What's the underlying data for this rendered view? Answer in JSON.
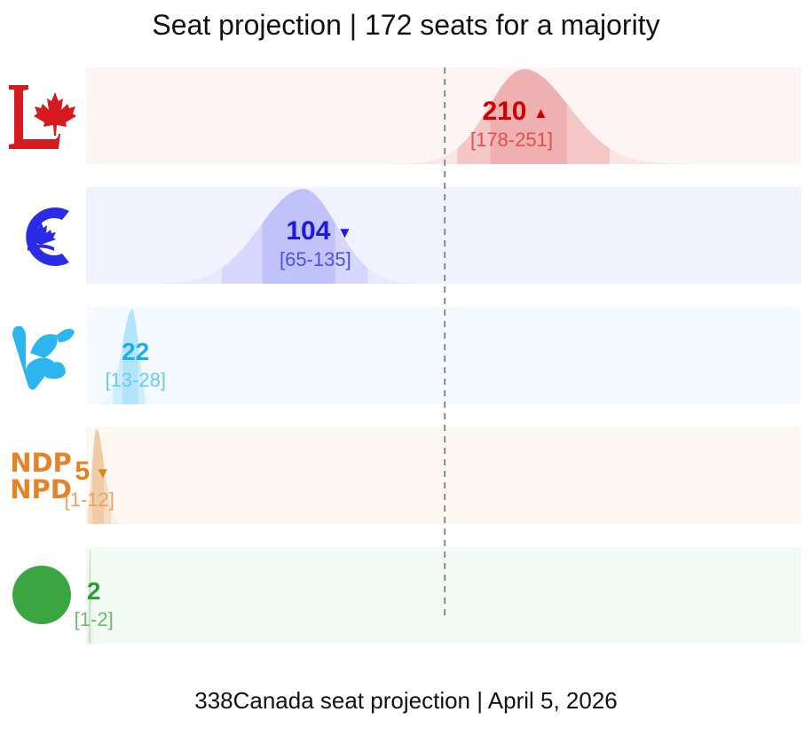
{
  "title": "Seat projection | 172 seats for a majority",
  "footer": "338Canada seat projection | April 5, 2026",
  "chart_data": {
    "type": "area",
    "x_range": [
      0,
      343
    ],
    "majority_line": 172,
    "parties": [
      {
        "id": "liberal",
        "logo": "liberal-logo",
        "value": 210,
        "trend": "▲",
        "range": "[178-251]",
        "low": 178,
        "high": 251,
        "color": "#d71920",
        "label_color": "#d00000",
        "range_color": "#e05050",
        "band_color": "#fdf4f4",
        "fill_color": "#f4c6c6",
        "fill_dark": "#eeb0b0"
      },
      {
        "id": "conservative",
        "logo": "conservative-logo",
        "value": 104,
        "trend": "▼",
        "range": "[65-135]",
        "low": 65,
        "high": 135,
        "color": "#2a2ae8",
        "label_color": "#1a1ae0",
        "range_color": "#5050e0",
        "band_color": "#f2f2ff",
        "fill_color": "#d6d6ff",
        "fill_dark": "#c2c2fb"
      },
      {
        "id": "bloc",
        "logo": "bloc-logo",
        "value": 22,
        "trend": "",
        "range": "[13-28]",
        "low": 13,
        "high": 28,
        "color": "#2bb6f0",
        "label_color": "#1ab0ee",
        "range_color": "#66ccf2",
        "band_color": "#f4faff",
        "fill_color": "#cdeefe",
        "fill_dark": "#b4e4fb"
      },
      {
        "id": "ndp",
        "logo": "ndp-logo",
        "logo_text": [
          "NDP",
          "NPD"
        ],
        "value": 5,
        "trend": "▼",
        "range": "[1-12]",
        "low": 1,
        "high": 12,
        "color": "#e3832a",
        "label_color": "#e0821e",
        "range_color": "#eaa25e",
        "band_color": "#fdf7f1",
        "fill_color": "#f6dcc4",
        "fill_dark": "#f0cba7"
      },
      {
        "id": "green",
        "logo": "green-logo",
        "value": 2,
        "trend": "",
        "range": "[1-2]",
        "low": 1,
        "high": 2,
        "color": "#3aa541",
        "label_color": "#2e9e32",
        "range_color": "#6bbb6c",
        "band_color": "#f3f9f3",
        "fill_color": "#d6efd6",
        "fill_dark": "#bfe3bf"
      }
    ]
  }
}
